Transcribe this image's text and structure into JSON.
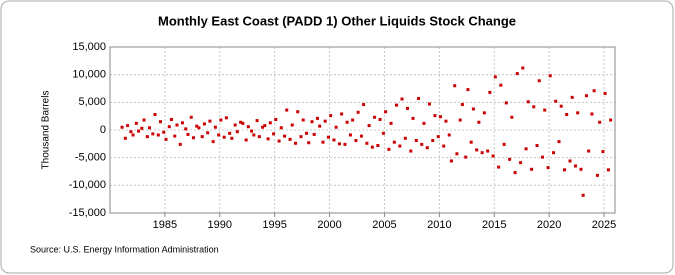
{
  "chart_data": {
    "type": "scatter",
    "title": "Monthly East Coast (PADD 1) Other Liquids Stock Change",
    "y_label": "Thousand Barrels",
    "source": "Source: U.S. Energy Information Administration",
    "color": "#cc0000",
    "grid": true,
    "xlim": [
      1980,
      2026
    ],
    "ylim": [
      -15000,
      15000
    ],
    "xticks": [
      1985,
      1990,
      1995,
      2000,
      2005,
      2010,
      2015,
      2020,
      2025
    ],
    "yticks": [
      {
        "value": -15000,
        "label": "-15,000"
      },
      {
        "value": -10000,
        "label": "-10,000"
      },
      {
        "value": -5000,
        "label": "-5,000"
      },
      0,
      {
        "value": 5000,
        "label": "5,000"
      },
      {
        "value": 10000,
        "label": "10,000"
      },
      {
        "value": 15000,
        "label": "15,000"
      }
    ],
    "x": [
      1981.1,
      1981.4,
      1981.6,
      1981.9,
      1982.1,
      1982.4,
      1982.6,
      1982.9,
      1983.1,
      1983.4,
      1983.6,
      1983.9,
      1984.1,
      1984.4,
      1984.6,
      1984.9,
      1985.1,
      1985.4,
      1985.6,
      1985.9,
      1986.1,
      1986.4,
      1986.6,
      1986.9,
      1987.1,
      1987.4,
      1987.6,
      1987.9,
      1988.1,
      1988.4,
      1988.6,
      1988.9,
      1989.1,
      1989.4,
      1989.6,
      1989.9,
      1990.1,
      1990.4,
      1990.6,
      1990.9,
      1991.1,
      1991.4,
      1991.6,
      1991.9,
      1992.1,
      1992.4,
      1992.6,
      1992.9,
      1993.1,
      1993.4,
      1993.6,
      1993.9,
      1994.1,
      1994.4,
      1994.6,
      1994.9,
      1995.1,
      1995.4,
      1995.6,
      1995.9,
      1996.1,
      1996.4,
      1996.6,
      1996.9,
      1997.1,
      1997.4,
      1997.6,
      1997.9,
      1998.1,
      1998.4,
      1998.6,
      1998.9,
      1999.1,
      1999.4,
      1999.6,
      1999.9,
      2000.1,
      2000.4,
      2000.6,
      2000.9,
      2001.1,
      2001.4,
      2001.6,
      2001.9,
      2002.1,
      2002.4,
      2002.6,
      2002.9,
      2003.1,
      2003.4,
      2003.6,
      2003.9,
      2004.1,
      2004.4,
      2004.6,
      2004.9,
      2005.1,
      2005.4,
      2005.6,
      2005.9,
      2006.1,
      2006.4,
      2006.6,
      2006.9,
      2007.1,
      2007.4,
      2007.6,
      2007.9,
      2008.1,
      2008.4,
      2008.6,
      2008.9,
      2009.1,
      2009.4,
      2009.6,
      2009.9,
      2010.1,
      2010.4,
      2010.6,
      2010.9,
      2011.1,
      2011.4,
      2011.6,
      2011.9,
      2012.1,
      2012.4,
      2012.6,
      2012.9,
      2013.1,
      2013.4,
      2013.6,
      2013.9,
      2014.1,
      2014.4,
      2014.6,
      2014.9,
      2015.1,
      2015.4,
      2015.6,
      2015.9,
      2016.1,
      2016.4,
      2016.6,
      2016.9,
      2017.1,
      2017.4,
      2017.6,
      2017.9,
      2018.1,
      2018.4,
      2018.6,
      2018.9,
      2019.1,
      2019.4,
      2019.6,
      2019.9,
      2020.1,
      2020.4,
      2020.6,
      2020.9,
      2021.1,
      2021.4,
      2021.6,
      2021.9,
      2022.1,
      2022.4,
      2022.6,
      2022.9,
      2023.1,
      2023.4,
      2023.6,
      2023.9,
      2024.1,
      2024.4,
      2024.6,
      2024.9,
      2025.1,
      2025.4,
      2025.6
    ],
    "values": [
      500,
      -1500,
      800,
      -300,
      -900,
      1200,
      -200,
      300,
      1800,
      -1200,
      400,
      -700,
      2800,
      -900,
      1500,
      -400,
      -1700,
      600,
      1900,
      -1100,
      900,
      -2600,
      1300,
      200,
      -800,
      2300,
      -1400,
      700,
      400,
      -1200,
      1100,
      -500,
      1600,
      -2100,
      500,
      -900,
      1800,
      -1300,
      2200,
      -600,
      -1500,
      900,
      -300,
      1400,
      1200,
      -1800,
      600,
      -200,
      -900,
      1700,
      -1200,
      500,
      800,
      -1600,
      1300,
      -700,
      1900,
      -2000,
      400,
      -1100,
      3600,
      -1700,
      900,
      -2400,
      3300,
      -1200,
      1800,
      -600,
      -2300,
      1500,
      -800,
      2100,
      700,
      -2200,
      1600,
      -1300,
      2600,
      -1800,
      500,
      -2500,
      2900,
      -2600,
      1400,
      -900,
      1800,
      -1900,
      3200,
      -1100,
      4600,
      -2400,
      800,
      -3100,
      2300,
      -2800,
      1900,
      -600,
      3300,
      -3500,
      1200,
      -2200,
      4500,
      -2900,
      5600,
      -1500,
      3900,
      -3800,
      2100,
      -1900,
      5700,
      -2600,
      1200,
      -3200,
      4700,
      -1900,
      2600,
      -1200,
      2400,
      -2900,
      1600,
      -900,
      -5600,
      8000,
      -4300,
      1800,
      4600,
      -4900,
      7300,
      -2200,
      3800,
      -3600,
      1400,
      -4100,
      3100,
      -3800,
      6800,
      -4700,
      9600,
      -6700,
      8100,
      -2600,
      4900,
      -5300,
      2300,
      -7700,
      10200,
      -5900,
      11200,
      -3400,
      5100,
      -7100,
      4200,
      -2800,
      8900,
      -4900,
      3600,
      -6800,
      9800,
      -4100,
      5200,
      -2100,
      4300,
      -7200,
      2800,
      -5600,
      5900,
      -6500,
      3100,
      -7100,
      -11800,
      6200,
      -3800,
      2900,
      7100,
      -8200,
      1400,
      -3900,
      6600,
      -7200,
      1800
    ]
  }
}
